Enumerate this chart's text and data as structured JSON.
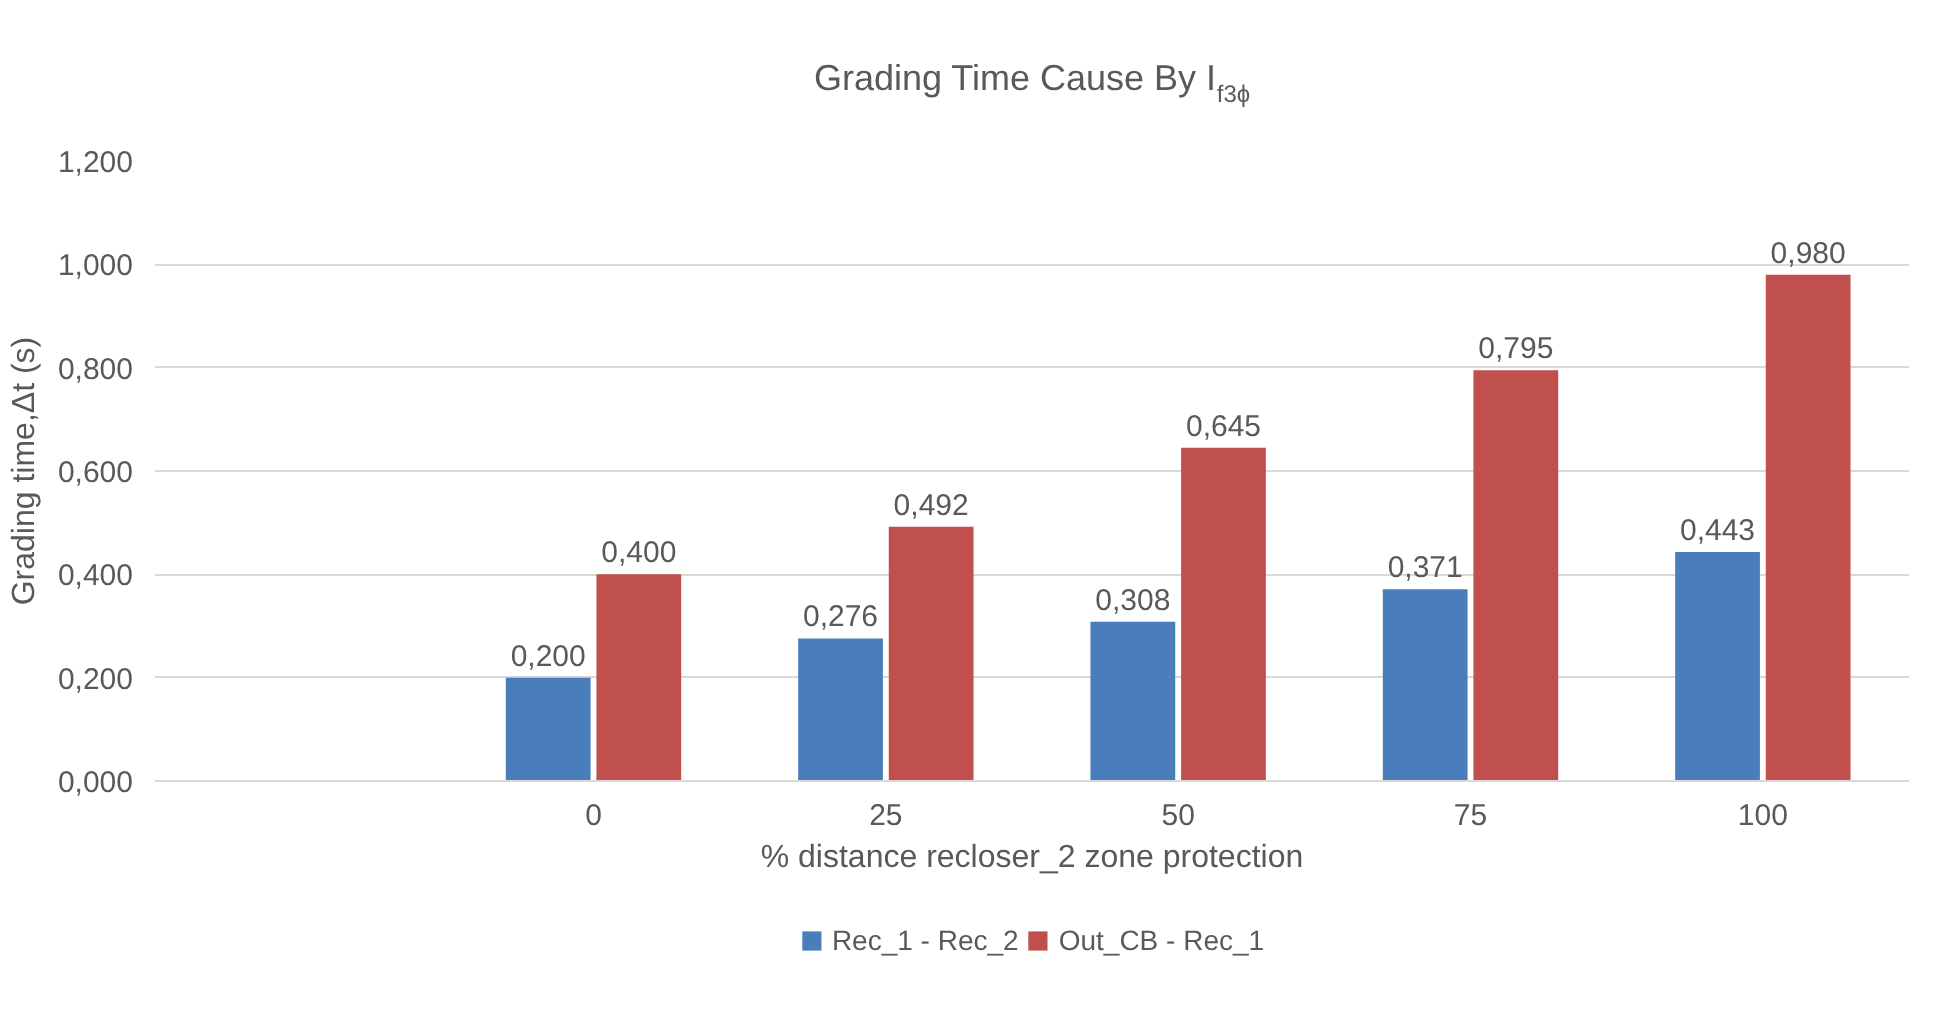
{
  "chart_data": {
    "type": "bar",
    "title": "Grading Time Cause By I$_{f3ϕ}$",
    "xlabel": "% distance recloser_2 zone protection",
    "ylabel": "Grading time,Δt (s)",
    "categories": [
      null,
      "0",
      "25",
      "50",
      "75",
      "100"
    ],
    "series": [
      {
        "name": "Rec_1 - Rec_2",
        "color": "#4a7ebb",
        "values": [
          null,
          0.2,
          0.276,
          0.308,
          0.371,
          0.443
        ],
        "value_labels": [
          null,
          "0,200",
          "0,276",
          "0,308",
          "0,371",
          "0,443"
        ]
      },
      {
        "name": "Out_CB - Rec_1",
        "color": "#c0504d",
        "values": [
          null,
          0.4,
          0.492,
          0.645,
          0.795,
          0.98
        ],
        "value_labels": [
          null,
          "0,400",
          "0,492",
          "0,645",
          "0,795",
          "0,980"
        ]
      }
    ],
    "ylim": [
      0,
      1.2
    ],
    "yticks": [
      {
        "value": 0,
        "label": "0,000"
      },
      {
        "value": 0.2,
        "label": "0,200"
      },
      {
        "value": 0.4,
        "label": "0,400"
      },
      {
        "value": 0.6,
        "label": "0,600"
      },
      {
        "value": 0.8,
        "label": "0,800"
      },
      {
        "value": 1.0,
        "label": "1,000"
      },
      {
        "value": 1.2,
        "label": "1,200"
      }
    ],
    "grid": "y",
    "legend": "bottom"
  }
}
